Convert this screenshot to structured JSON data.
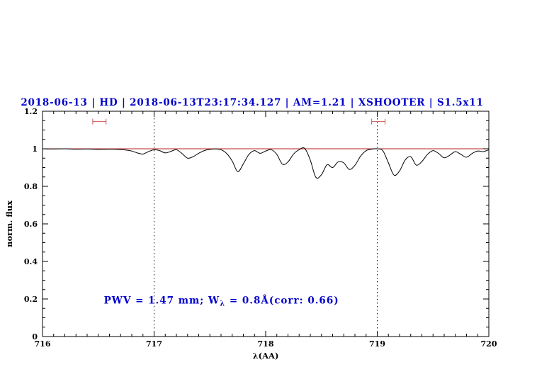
{
  "colors": {
    "background": "#ffffff",
    "title": "#0000cd",
    "annotation": "#0000cd",
    "continuum": "#bb2222",
    "range_marker": "#cc5555",
    "spectrum": "#000000",
    "axis": "#000000"
  },
  "chart_data": {
    "type": "line",
    "title": "2018-06-13 | HD | 2018-06-13T23:17:34.127 | AM=1.21 | XSHOOTER | S1.5x11",
    "xlabel": "λ(AA)",
    "ylabel": "norm. flux",
    "xlim": [
      716,
      720
    ],
    "ylim": [
      0,
      1.2
    ],
    "x_ticks": [
      716,
      717,
      718,
      719,
      720
    ],
    "x_tick_labels": [
      "716",
      "717",
      "718",
      "719",
      "720"
    ],
    "x_minor_step": 0.1,
    "y_ticks": [
      0,
      0.2,
      0.4,
      0.6,
      0.8,
      1,
      1.2
    ],
    "y_tick_labels": [
      "0",
      "0.2",
      "0.4",
      "0.6",
      "0.8",
      "1",
      "1.2"
    ],
    "y_minor_step": 0.05,
    "grid": "off",
    "legend": "none",
    "vlines": [
      717,
      719
    ],
    "continuum_level": 1.0,
    "range_markers": [
      {
        "x1": 716.45,
        "x2": 716.57,
        "y": 1.145
      },
      {
        "x1": 718.95,
        "x2": 719.07,
        "y": 1.145
      }
    ],
    "annotation": {
      "prefix": "PWV = 1.47 mm; W",
      "subscript": "λ",
      "suffix": " = 0.8Å(corr: 0.66)",
      "x": 716.55,
      "y": 0.175
    },
    "series": [
      {
        "name": "observed spectrum",
        "color": "#000000",
        "x": [
          716.0,
          716.1,
          716.2,
          716.3,
          716.4,
          716.5,
          716.6,
          716.7,
          716.75,
          716.8,
          716.85,
          716.9,
          716.95,
          717.0,
          717.05,
          717.1,
          717.15,
          717.2,
          717.25,
          717.3,
          717.35,
          717.4,
          717.45,
          717.5,
          717.55,
          717.6,
          717.65,
          717.7,
          717.75,
          717.8,
          717.85,
          717.9,
          717.95,
          718.0,
          718.05,
          718.1,
          718.15,
          718.2,
          718.25,
          718.3,
          718.35,
          718.4,
          718.45,
          718.5,
          718.55,
          718.6,
          718.65,
          718.7,
          718.75,
          718.8,
          718.85,
          718.9,
          718.95,
          719.0,
          719.05,
          719.1,
          719.15,
          719.2,
          719.25,
          719.3,
          719.35,
          719.4,
          719.45,
          719.5,
          719.55,
          719.6,
          719.65,
          719.7,
          719.75,
          719.8,
          719.85,
          719.9,
          719.95,
          720.0
        ],
        "y": [
          1.0,
          0.999,
          1.0,
          0.998,
          0.999,
          0.997,
          0.998,
          0.996,
          0.993,
          0.988,
          0.978,
          0.972,
          0.985,
          0.995,
          0.99,
          0.978,
          0.986,
          0.995,
          0.975,
          0.95,
          0.958,
          0.976,
          0.99,
          0.997,
          0.999,
          0.995,
          0.975,
          0.935,
          0.878,
          0.92,
          0.97,
          0.99,
          0.976,
          0.988,
          0.995,
          0.97,
          0.918,
          0.93,
          0.972,
          0.995,
          1.002,
          0.94,
          0.848,
          0.862,
          0.915,
          0.9,
          0.93,
          0.925,
          0.89,
          0.912,
          0.96,
          0.99,
          0.998,
          1.0,
          0.99,
          0.925,
          0.86,
          0.882,
          0.94,
          0.958,
          0.913,
          0.932,
          0.97,
          0.99,
          0.975,
          0.952,
          0.966,
          0.985,
          0.97,
          0.955,
          0.975,
          0.988,
          0.985,
          0.995
        ]
      },
      {
        "name": "continuum",
        "color": "#bb2222",
        "x": [
          716,
          720
        ],
        "y": [
          1.0,
          1.0
        ]
      }
    ]
  }
}
